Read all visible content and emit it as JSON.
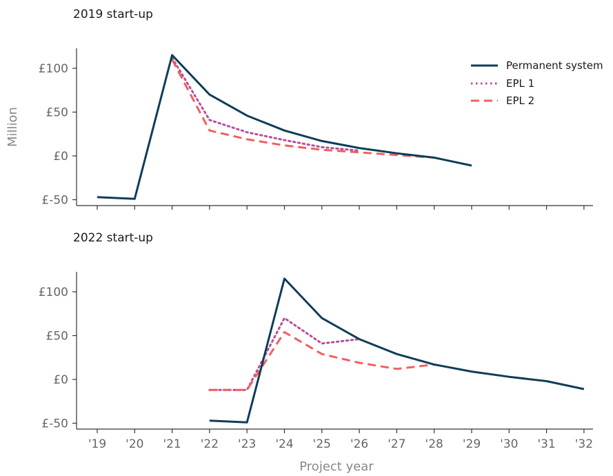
{
  "chart_data": [
    {
      "type": "line",
      "title": "2019 start-up",
      "ylabel": "Million",
      "xlabel": "",
      "ylim": [
        -55,
        125
      ],
      "yticks": [
        "£-50",
        "£0",
        "£50",
        "£100"
      ],
      "ytick_values": [
        -50,
        0,
        50,
        100
      ],
      "categories": [
        "'19",
        "'20",
        "'21",
        "'22",
        "'23",
        "'24",
        "'25",
        "'26",
        "'27",
        "'28",
        "'29",
        "'30",
        "'31",
        "'32"
      ],
      "legend": "top-right",
      "series": [
        {
          "name": "Permanent system",
          "style": "solid",
          "color": "#0e3d57",
          "x": [
            "'19",
            "'20",
            "'21",
            "'22",
            "'23",
            "'24",
            "'25",
            "'26",
            "'27",
            "'28",
            "'29"
          ],
          "values": [
            -47,
            -49,
            115,
            70,
            46,
            29,
            17,
            9,
            3,
            -2,
            -11
          ]
        },
        {
          "name": "EPL 1",
          "style": "dotted",
          "color": "#b94d9a",
          "x": [
            "'21",
            "'22",
            "'23",
            "'24",
            "'25",
            "'26"
          ],
          "values": [
            112,
            41,
            27,
            18,
            10,
            6
          ]
        },
        {
          "name": "EPL 2",
          "style": "dashed",
          "color": "#f0605d",
          "x": [
            "'21",
            "'22",
            "'23",
            "'24",
            "'25",
            "'26",
            "'27",
            "'28"
          ],
          "values": [
            110,
            29,
            19,
            12,
            7,
            4,
            1,
            -2
          ]
        }
      ]
    },
    {
      "type": "line",
      "title": "2022 start-up",
      "ylabel": "",
      "xlabel": "Project year",
      "ylim": [
        -55,
        125
      ],
      "yticks": [
        "£-50",
        "£0",
        "£50",
        "£100"
      ],
      "ytick_values": [
        -50,
        0,
        50,
        100
      ],
      "categories": [
        "'19",
        "'20",
        "'21",
        "'22",
        "'23",
        "'24",
        "'25",
        "'26",
        "'27",
        "'28",
        "'29",
        "'30",
        "'31",
        "'32"
      ],
      "series": [
        {
          "name": "Permanent system",
          "style": "solid",
          "color": "#0e3d57",
          "x": [
            "'22",
            "'23",
            "'24",
            "'25",
            "'26",
            "'27",
            "'28",
            "'29",
            "'30",
            "'31",
            "'32"
          ],
          "values": [
            -47,
            -49,
            115,
            70,
            46,
            29,
            17,
            9,
            3,
            -2,
            -11
          ]
        },
        {
          "name": "EPL 1",
          "style": "dotted",
          "color": "#b94d9a",
          "x": [
            "'22",
            "'23",
            "'24",
            "'25",
            "'26"
          ],
          "values": [
            -12,
            -12,
            70,
            41,
            46
          ]
        },
        {
          "name": "EPL 2",
          "style": "dashed",
          "color": "#f0605d",
          "x": [
            "'22",
            "'23",
            "'24",
            "'25",
            "'26",
            "'27",
            "'28"
          ],
          "values": [
            -12,
            -12,
            54,
            29,
            19,
            12,
            17
          ]
        }
      ]
    }
  ]
}
